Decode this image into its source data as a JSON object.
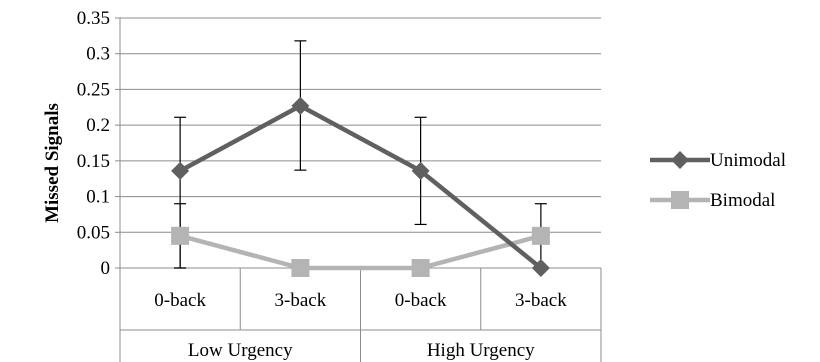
{
  "chart_data": {
    "type": "line",
    "ylabel": "Missed Signals",
    "xlabel": "",
    "ylim": [
      0,
      0.35
    ],
    "yticks": [
      "0",
      "0.05",
      "0.1",
      "0.15",
      "0.2",
      "0.25",
      "0.3",
      "0.35"
    ],
    "grid": true,
    "legend_position": "right",
    "categories": [
      "0-back",
      "3-back",
      "0-back",
      "3-back"
    ],
    "groups": [
      {
        "label": "Low Urgency",
        "span": 2
      },
      {
        "label": "High Urgency",
        "span": 2
      }
    ],
    "series": [
      {
        "name": "Unimodal",
        "color": "#606060",
        "marker": "diamond",
        "values": [
          0.136,
          0.227,
          0.136,
          0.0
        ],
        "error_low": [
          0.0,
          0.137,
          0.061,
          0.0
        ],
        "error_high": [
          0.211,
          0.318,
          0.211,
          0.0
        ],
        "error_bars": [
          true,
          true,
          true,
          false
        ]
      },
      {
        "name": "Bimodal",
        "color": "#b4b4b4",
        "marker": "square",
        "values": [
          0.045,
          0.0,
          0.0,
          0.045
        ],
        "error_low": [
          0.0,
          0.0,
          0.0,
          0.0
        ],
        "error_high": [
          0.09,
          0.0,
          0.0,
          0.09
        ],
        "error_bars": [
          true,
          false,
          false,
          true
        ]
      }
    ]
  }
}
